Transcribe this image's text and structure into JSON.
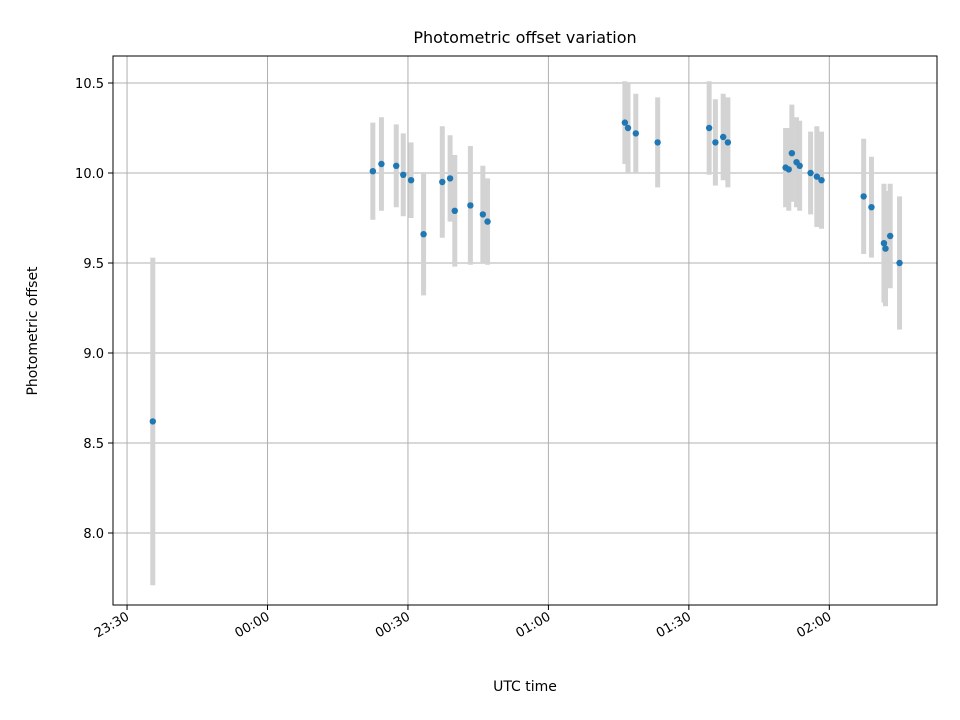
{
  "chart_data": {
    "type": "scatter",
    "title": "Photometric offset variation",
    "xlabel": "UTC time",
    "ylabel": "Photometric offset",
    "x_ticks": [
      "23:30",
      "00:00",
      "00:30",
      "01:00",
      "01:30",
      "02:00"
    ],
    "y_ticks": [
      "8.0",
      "8.5",
      "9.0",
      "9.5",
      "10.0",
      "10.5"
    ],
    "xlim": [
      "23:27",
      "02:23"
    ],
    "ylim": [
      7.6,
      10.65
    ],
    "grid": true,
    "colors": {
      "point": "#1f77b4",
      "errorbar": "#d3d3d3",
      "grid": "#b0b0b0"
    },
    "points": [
      {
        "x": "23:35:30",
        "y": 8.62,
        "yerr": 0.91
      },
      {
        "x": "00:22:30",
        "y": 10.01,
        "yerr": 0.27
      },
      {
        "x": "00:24:20",
        "y": 10.05,
        "yerr": 0.26
      },
      {
        "x": "00:27:30",
        "y": 10.04,
        "yerr": 0.23
      },
      {
        "x": "00:29:00",
        "y": 9.99,
        "yerr": 0.23
      },
      {
        "x": "00:30:40",
        "y": 9.96,
        "yerr": 0.21
      },
      {
        "x": "00:33:20",
        "y": 9.66,
        "yerr": 0.34
      },
      {
        "x": "00:37:20",
        "y": 9.95,
        "yerr": 0.31
      },
      {
        "x": "00:39:00",
        "y": 9.97,
        "yerr": 0.24
      },
      {
        "x": "00:40:00",
        "y": 9.79,
        "yerr": 0.31
      },
      {
        "x": "00:43:20",
        "y": 9.82,
        "yerr": 0.33
      },
      {
        "x": "00:46:00",
        "y": 9.77,
        "yerr": 0.27
      },
      {
        "x": "00:47:00",
        "y": 9.73,
        "yerr": 0.24
      },
      {
        "x": "01:16:20",
        "y": 10.28,
        "yerr": 0.23
      },
      {
        "x": "01:17:00",
        "y": 10.25,
        "yerr": 0.25
      },
      {
        "x": "01:18:40",
        "y": 10.22,
        "yerr": 0.22
      },
      {
        "x": "01:23:20",
        "y": 10.17,
        "yerr": 0.25
      },
      {
        "x": "01:34:20",
        "y": 10.25,
        "yerr": 0.26
      },
      {
        "x": "01:35:40",
        "y": 10.17,
        "yerr": 0.24
      },
      {
        "x": "01:37:20",
        "y": 10.2,
        "yerr": 0.24
      },
      {
        "x": "01:38:20",
        "y": 10.17,
        "yerr": 0.25
      },
      {
        "x": "01:50:40",
        "y": 10.03,
        "yerr": 0.22
      },
      {
        "x": "01:51:20",
        "y": 10.02,
        "yerr": 0.23
      },
      {
        "x": "01:52:00",
        "y": 10.11,
        "yerr": 0.27
      },
      {
        "x": "01:53:00",
        "y": 10.06,
        "yerr": 0.25
      },
      {
        "x": "01:53:40",
        "y": 10.04,
        "yerr": 0.25
      },
      {
        "x": "01:56:00",
        "y": 10.0,
        "yerr": 0.23
      },
      {
        "x": "01:57:20",
        "y": 9.98,
        "yerr": 0.28
      },
      {
        "x": "01:58:20",
        "y": 9.96,
        "yerr": 0.27
      },
      {
        "x": "02:07:20",
        "y": 9.87,
        "yerr": 0.32
      },
      {
        "x": "02:09:00",
        "y": 9.81,
        "yerr": 0.28
      },
      {
        "x": "02:11:40",
        "y": 9.61,
        "yerr": 0.33
      },
      {
        "x": "02:12:00",
        "y": 9.58,
        "yerr": 0.32
      },
      {
        "x": "02:13:00",
        "y": 9.65,
        "yerr": 0.29
      },
      {
        "x": "02:15:00",
        "y": 9.5,
        "yerr": 0.37
      }
    ]
  }
}
